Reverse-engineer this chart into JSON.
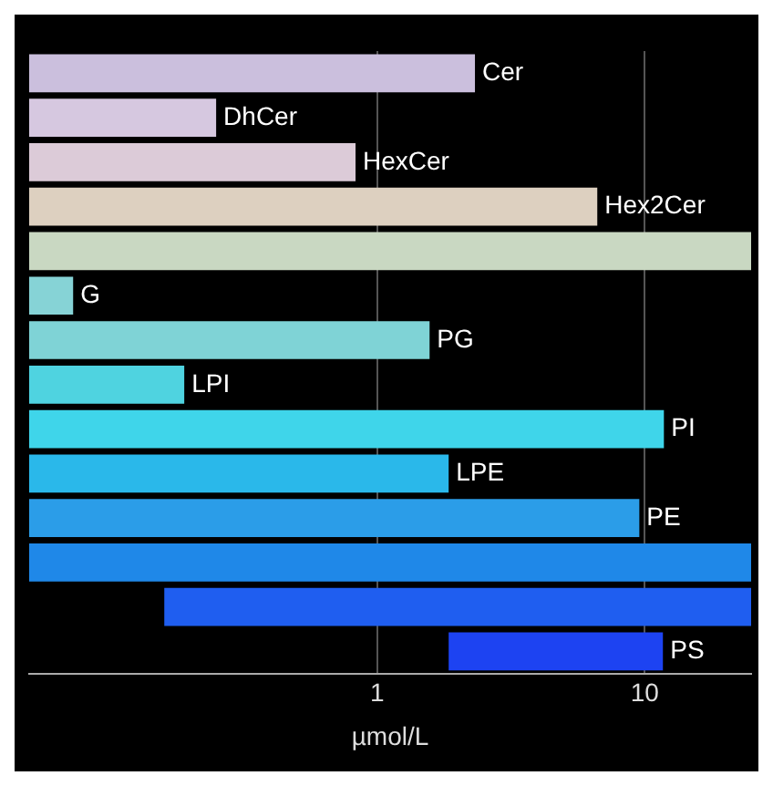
{
  "chart_data": {
    "type": "bar",
    "orientation": "horizontal",
    "xlabel": "µmol/L",
    "categories": [
      "Cer",
      "DhCer",
      "HexCer",
      "Hex2Cer",
      null,
      "G",
      "PG",
      "LPI",
      "PI",
      "LPE",
      "PE",
      null,
      null,
      "PS"
    ],
    "base": [
      0.05,
      0.05,
      0.05,
      0.05,
      0.05,
      0.05,
      0.05,
      0.05,
      0.05,
      0.05,
      0.05,
      0.05,
      0.16,
      1.85
    ],
    "values": [
      2.27,
      0.2,
      0.78,
      6.6,
      24.95,
      0.023,
      1.52,
      0.14,
      11.75,
      1.8,
      9.5,
      24.95,
      24.84,
      9.85
    ],
    "colors": [
      "#cbbfdd",
      "#d6c8e0",
      "#dccbd8",
      "#ddd0c0",
      "#c9d8c2",
      "#86d3d6",
      "#7fd3d6",
      "#4fd3e0",
      "#3fd5ea",
      "#2ab8ea",
      "#2b9de8",
      "#1f88e8",
      "#1f5ef0",
      "#1d43f2"
    ],
    "log": "x",
    "xlim": [
      0.05,
      25
    ],
    "xticks": [
      1,
      10
    ],
    "grid": "x",
    "legend": false,
    "tick_labels": "x"
  }
}
